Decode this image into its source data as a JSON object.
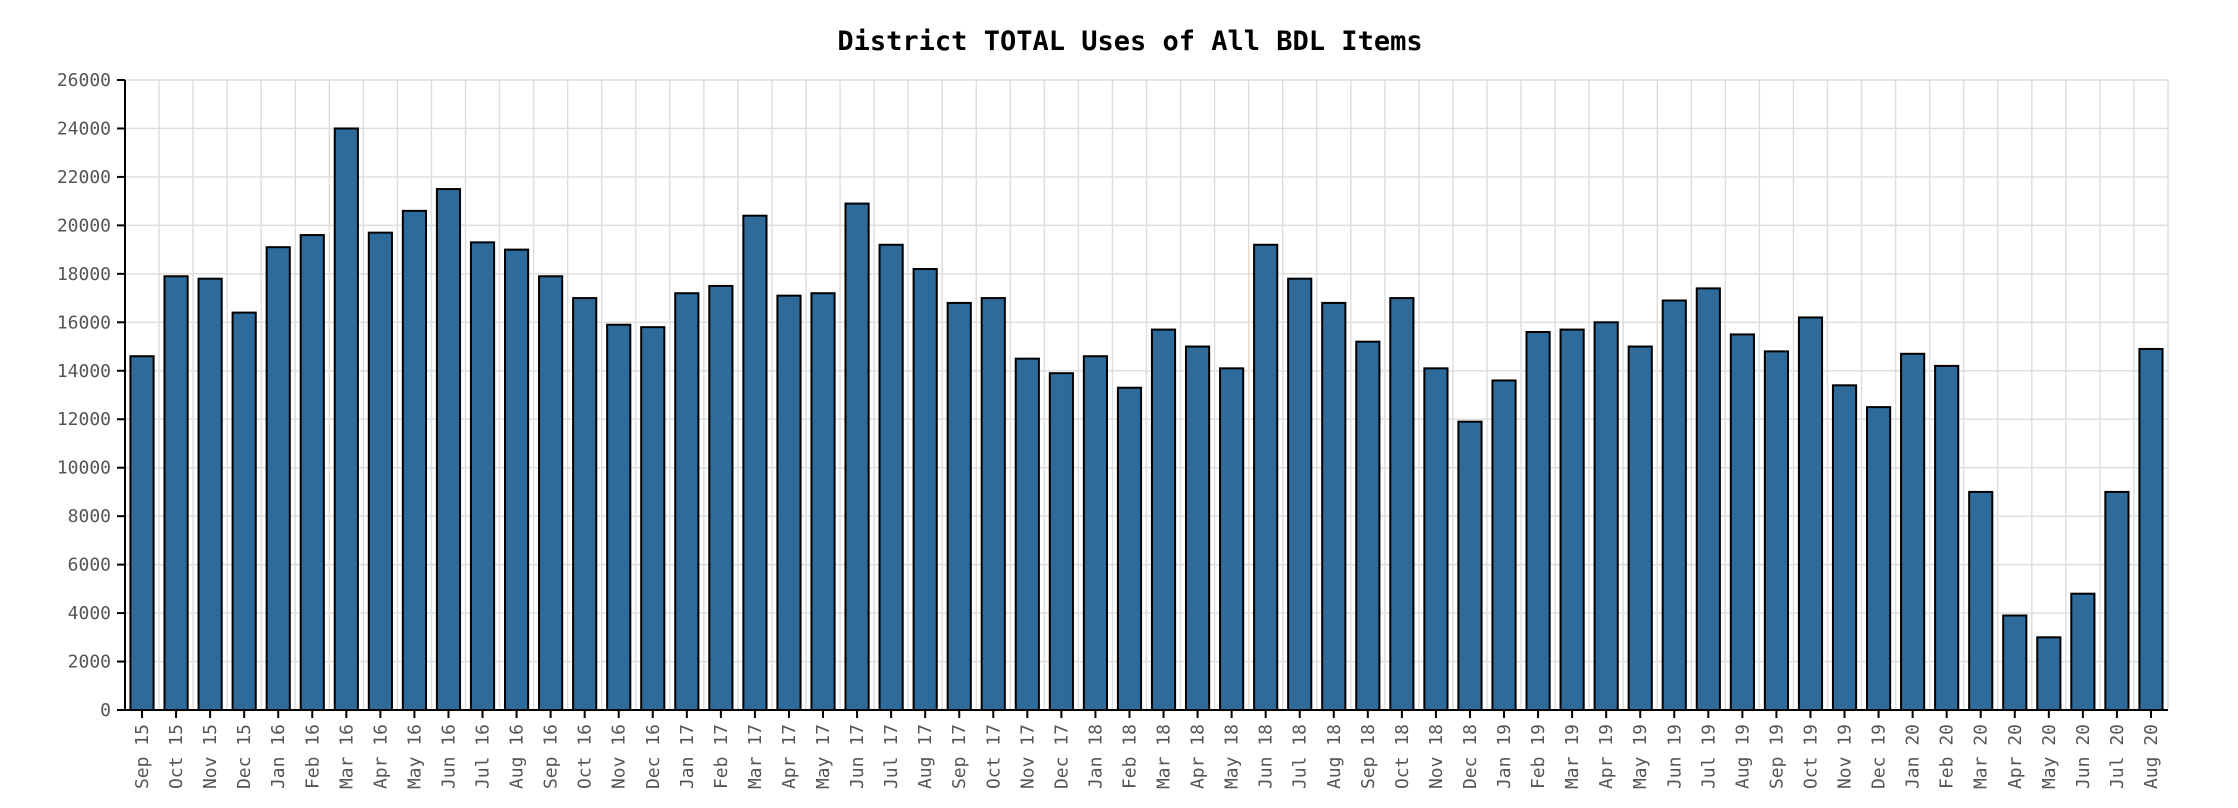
{
  "chart_data": {
    "type": "bar",
    "title": "District TOTAL Uses of All BDL Items",
    "xlabel": "",
    "ylabel": "",
    "ylim": [
      0,
      26000
    ],
    "yticks": [
      0,
      2000,
      4000,
      6000,
      8000,
      10000,
      12000,
      14000,
      16000,
      18000,
      20000,
      22000,
      24000,
      26000
    ],
    "grid": true,
    "colors": {
      "bar": "#2f6b9a",
      "grid": "#dddddd"
    },
    "categories": [
      "Sep 15",
      "Oct 15",
      "Nov 15",
      "Dec 15",
      "Jan 16",
      "Feb 16",
      "Mar 16",
      "Apr 16",
      "May 16",
      "Jun 16",
      "Jul 16",
      "Aug 16",
      "Sep 16",
      "Oct 16",
      "Nov 16",
      "Dec 16",
      "Jan 17",
      "Feb 17",
      "Mar 17",
      "Apr 17",
      "May 17",
      "Jun 17",
      "Jul 17",
      "Aug 17",
      "Sep 17",
      "Oct 17",
      "Nov 17",
      "Dec 17",
      "Jan 18",
      "Feb 18",
      "Mar 18",
      "Apr 18",
      "May 18",
      "Jun 18",
      "Jul 18",
      "Aug 18",
      "Sep 18",
      "Oct 18",
      "Nov 18",
      "Dec 18",
      "Jan 19",
      "Feb 19",
      "Mar 19",
      "Apr 19",
      "May 19",
      "Jun 19",
      "Jul 19",
      "Aug 19",
      "Sep 19",
      "Oct 19",
      "Nov 19",
      "Dec 19",
      "Jan 20",
      "Feb 20",
      "Mar 20",
      "Apr 20",
      "May 20",
      "Jun 20",
      "Jul 20",
      "Aug 20"
    ],
    "values": [
      14600,
      17900,
      17800,
      16400,
      19100,
      19600,
      24000,
      19700,
      20600,
      21500,
      19300,
      19000,
      17900,
      17000,
      15900,
      15800,
      17200,
      17500,
      20400,
      17100,
      17200,
      20900,
      19200,
      18200,
      16800,
      17000,
      14500,
      13900,
      14600,
      13300,
      15700,
      15000,
      14100,
      19200,
      17800,
      16800,
      15200,
      17000,
      14100,
      11900,
      13600,
      15600,
      15700,
      16000,
      15000,
      16900,
      17400,
      15500,
      14800,
      16200,
      13400,
      12500,
      14700,
      14200,
      9000,
      3900,
      3000,
      4800,
      9000,
      14900
    ]
  }
}
